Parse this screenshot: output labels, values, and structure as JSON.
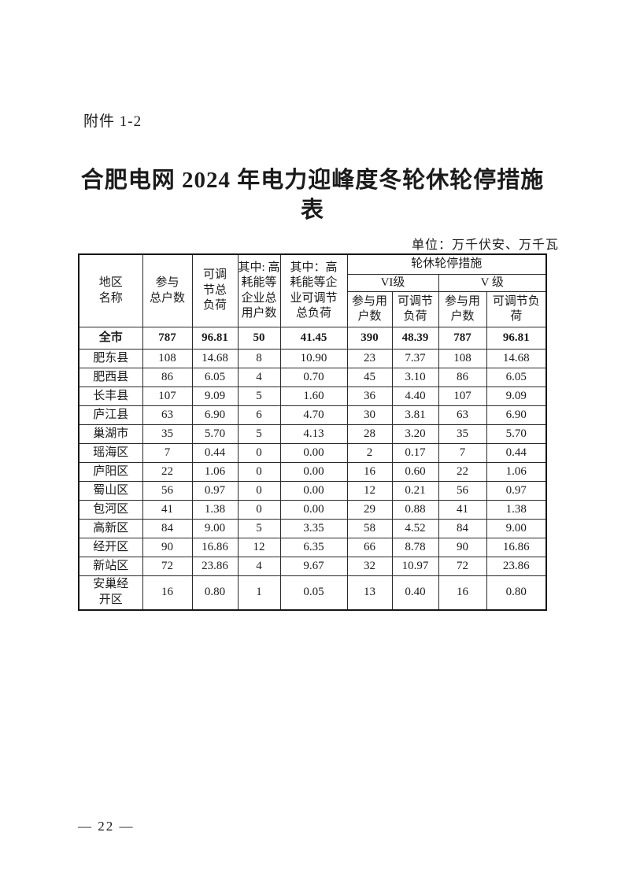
{
  "doc": {
    "attachment_label": "附件 1-2",
    "title_lines": [
      "合肥电网 2024 年电力迎峰度冬轮休轮停措施",
      "表"
    ],
    "unit_note": "单位：万千伏安、万千瓦"
  },
  "table": {
    "headers": {
      "region": "地区\n名称",
      "participating_total_users": "参与\n总户数",
      "adjustable_total_load": "可调\n节总\n负荷",
      "high_energy_total_users": "其中: 高\n耗能等\n企业总\n用户数",
      "high_energy_adjustable_load": "其中：高\n耗能等企\n业可调节\n总负荷",
      "measures_group": "轮休轮停措施",
      "level_vi": "VI级",
      "level_v": "V 级",
      "vi_users": "参与用\n户数",
      "vi_load": "可调节\n负荷",
      "v_users": "参与用\n户数",
      "v_load": "可调节负\n荷"
    },
    "rows": [
      {
        "region": "全市",
        "values": [
          "787",
          "96.81",
          "50",
          "41.45",
          "390",
          "48.39",
          "787",
          "96.81"
        ],
        "bold": true,
        "tall": false
      },
      {
        "region": "肥东县",
        "values": [
          "108",
          "14.68",
          "8",
          "10.90",
          "23",
          "7.37",
          "108",
          "14.68"
        ],
        "bold": false,
        "tall": false
      },
      {
        "region": "肥西县",
        "values": [
          "86",
          "6.05",
          "4",
          "0.70",
          "45",
          "3.10",
          "86",
          "6.05"
        ],
        "bold": false,
        "tall": false
      },
      {
        "region": "长丰县",
        "values": [
          "107",
          "9.09",
          "5",
          "1.60",
          "36",
          "4.40",
          "107",
          "9.09"
        ],
        "bold": false,
        "tall": false
      },
      {
        "region": "庐江县",
        "values": [
          "63",
          "6.90",
          "6",
          "4.70",
          "30",
          "3.81",
          "63",
          "6.90"
        ],
        "bold": false,
        "tall": false
      },
      {
        "region": "巢湖市",
        "values": [
          "35",
          "5.70",
          "5",
          "4.13",
          "28",
          "3.20",
          "35",
          "5.70"
        ],
        "bold": false,
        "tall": false
      },
      {
        "region": "瑶海区",
        "values": [
          "7",
          "0.44",
          "0",
          "0.00",
          "2",
          "0.17",
          "7",
          "0.44"
        ],
        "bold": false,
        "tall": false
      },
      {
        "region": "庐阳区",
        "values": [
          "22",
          "1.06",
          "0",
          "0.00",
          "16",
          "0.60",
          "22",
          "1.06"
        ],
        "bold": false,
        "tall": false
      },
      {
        "region": "蜀山区",
        "values": [
          "56",
          "0.97",
          "0",
          "0.00",
          "12",
          "0.21",
          "56",
          "0.97"
        ],
        "bold": false,
        "tall": false
      },
      {
        "region": "包河区",
        "values": [
          "41",
          "1.38",
          "0",
          "0.00",
          "29",
          "0.88",
          "41",
          "1.38"
        ],
        "bold": false,
        "tall": false
      },
      {
        "region": "高新区",
        "values": [
          "84",
          "9.00",
          "5",
          "3.35",
          "58",
          "4.52",
          "84",
          "9.00"
        ],
        "bold": false,
        "tall": false
      },
      {
        "region": "经开区",
        "values": [
          "90",
          "16.86",
          "12",
          "6.35",
          "66",
          "8.78",
          "90",
          "16.86"
        ],
        "bold": false,
        "tall": false
      },
      {
        "region": "新站区",
        "values": [
          "72",
          "23.86",
          "4",
          "9.67",
          "32",
          "10.97",
          "72",
          "23.86"
        ],
        "bold": false,
        "tall": false
      },
      {
        "region": "安巢经\n开区",
        "values": [
          "16",
          "0.80",
          "1",
          "0.05",
          "13",
          "0.40",
          "16",
          "0.80"
        ],
        "bold": false,
        "tall": true
      }
    ]
  },
  "footer": {
    "page_number": "— 22 —"
  }
}
